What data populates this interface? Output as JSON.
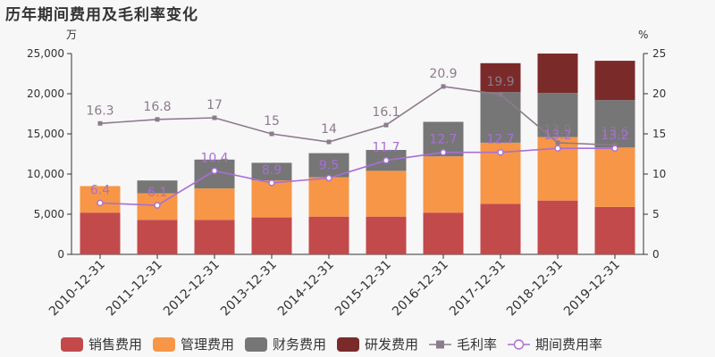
{
  "chart_data": {
    "type": "bar",
    "title": "历年期间费用及毛利率变化",
    "left_unit": "万",
    "right_unit": "%",
    "categories": [
      "2010-12-31",
      "2011-12-31",
      "2012-12-31",
      "2013-12-31",
      "2014-12-31",
      "2015-12-31",
      "2016-12-31",
      "2017-12-31",
      "2018-12-31",
      "2019-12-31"
    ],
    "y_left": {
      "min": 0,
      "max": 25000,
      "ticks": [
        "0",
        "5,000",
        "10,000",
        "15,000",
        "20,000",
        "25,000"
      ]
    },
    "y_right": {
      "min": 0,
      "max": 25,
      "ticks": [
        "0",
        "5",
        "10",
        "15",
        "20",
        "25"
      ]
    },
    "grid": false,
    "legend_position": "bottom",
    "series": [
      {
        "name": "销售费用",
        "kind": "bar",
        "color": "#c34a4b",
        "values": [
          5200,
          4300,
          4300,
          4600,
          4700,
          4700,
          5200,
          6300,
          6700,
          5900
        ]
      },
      {
        "name": "管理费用",
        "kind": "bar",
        "color": "#f79646",
        "values": [
          3300,
          3300,
          3900,
          4600,
          4900,
          5700,
          7000,
          7600,
          7900,
          7400
        ]
      },
      {
        "name": "财务费用",
        "kind": "bar",
        "color": "#767676",
        "values": [
          0,
          1600,
          3600,
          2200,
          3000,
          2600,
          4300,
          6300,
          5500,
          5900
        ]
      },
      {
        "name": "研发费用",
        "kind": "bar",
        "color": "#7b2a2a",
        "values": [
          0,
          0,
          0,
          0,
          0,
          0,
          0,
          3600,
          4900,
          4900
        ]
      },
      {
        "name": "毛利率",
        "kind": "line",
        "color": "#8b7b8b",
        "marker": "square",
        "labels": [
          "16.3",
          "16.8",
          "17",
          "15",
          "14",
          "16.1",
          "20.9",
          "19.9",
          "13.9",
          "13.6"
        ],
        "values": [
          16.3,
          16.8,
          17,
          15,
          14,
          16.1,
          20.9,
          19.9,
          13.9,
          13.6
        ]
      },
      {
        "name": "期间费用率",
        "kind": "line",
        "color": "#a86fd6",
        "marker": "circle",
        "labels": [
          "6.4",
          "6.1",
          "10.4",
          "8.9",
          "9.5",
          "11.7",
          "12.7",
          "12.7",
          "13.2",
          "13.2"
        ],
        "values": [
          6.4,
          6.1,
          10.4,
          8.9,
          9.5,
          11.7,
          12.7,
          12.7,
          13.2,
          13.2
        ]
      }
    ]
  }
}
